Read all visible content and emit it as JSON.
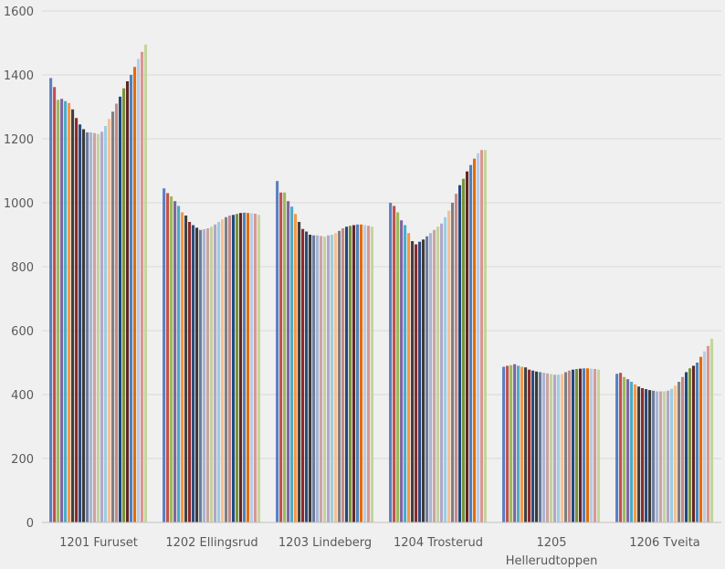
{
  "chart_data": {
    "type": "bar",
    "title": "",
    "xlabel": "",
    "ylabel": "",
    "ylim": [
      0,
      1600
    ],
    "yticks": [
      0,
      200,
      400,
      600,
      800,
      1000,
      1200,
      1400,
      1600
    ],
    "grid": true,
    "legend": "none",
    "categories": [
      "1201 Furuset",
      "1202 Ellingsrud",
      "1203 Lindeberg",
      "1204 Trosterud",
      "1205 Hellerudtoppen",
      "1206 Tveita"
    ],
    "category_label_lines": [
      [
        "1201 Furuset"
      ],
      [
        "1202 Ellingsrud"
      ],
      [
        "1203 Lindeberg"
      ],
      [
        "1204 Trosterud"
      ],
      [
        "1205",
        "Hellerudtoppen"
      ],
      [
        "1206 Tveita"
      ]
    ],
    "series_colors": [
      "#5b7fc0",
      "#c0504d",
      "#9bbb59",
      "#8064a2",
      "#4bacc6",
      "#f79646",
      "#404040",
      "#8b2a2a",
      "#2e4a7a",
      "#3a3a3a",
      "#6d7d9e",
      "#a9b5d2",
      "#cba4a3",
      "#c4d39e",
      "#b3a6c8",
      "#9ccfe0",
      "#f7c096",
      "#7f7f7f",
      "#c48a89",
      "#1f497d",
      "#77933c",
      "#632523",
      "#4f81bd",
      "#e46c0a",
      "#b9cde5",
      "#d99795",
      "#c3d69b"
    ],
    "series_values": [
      [
        1390,
        1362,
        1322,
        1325,
        1318,
        1312,
        1292,
        1265,
        1245,
        1230,
        1220,
        1220,
        1218,
        1215,
        1222,
        1240,
        1262,
        1285,
        1310,
        1332,
        1358,
        1380,
        1400,
        1425,
        1450,
        1472,
        1495
      ],
      [
        1045,
        1030,
        1020,
        1005,
        990,
        970,
        960,
        940,
        930,
        922,
        915,
        917,
        920,
        925,
        932,
        940,
        948,
        955,
        960,
        962,
        965,
        968,
        969,
        968,
        967,
        966,
        962
      ],
      [
        1068,
        1032,
        1032,
        1005,
        988,
        965,
        940,
        918,
        910,
        900,
        898,
        898,
        896,
        894,
        898,
        900,
        905,
        912,
        920,
        925,
        928,
        930,
        932,
        932,
        930,
        928,
        925
      ],
      [
        1000,
        990,
        970,
        945,
        930,
        905,
        880,
        870,
        878,
        885,
        895,
        905,
        915,
        925,
        935,
        955,
        975,
        1000,
        1028,
        1055,
        1075,
        1098,
        1118,
        1138,
        1155,
        1165,
        1165
      ],
      [
        487,
        490,
        492,
        495,
        490,
        487,
        485,
        478,
        475,
        472,
        470,
        468,
        466,
        464,
        462,
        462,
        464,
        470,
        475,
        478,
        480,
        481,
        482,
        482,
        481,
        480,
        478
      ],
      [
        465,
        468,
        455,
        448,
        440,
        432,
        425,
        420,
        417,
        414,
        412,
        410,
        410,
        410,
        412,
        418,
        428,
        440,
        455,
        470,
        482,
        490,
        500,
        518,
        535,
        552,
        575
      ]
    ]
  }
}
